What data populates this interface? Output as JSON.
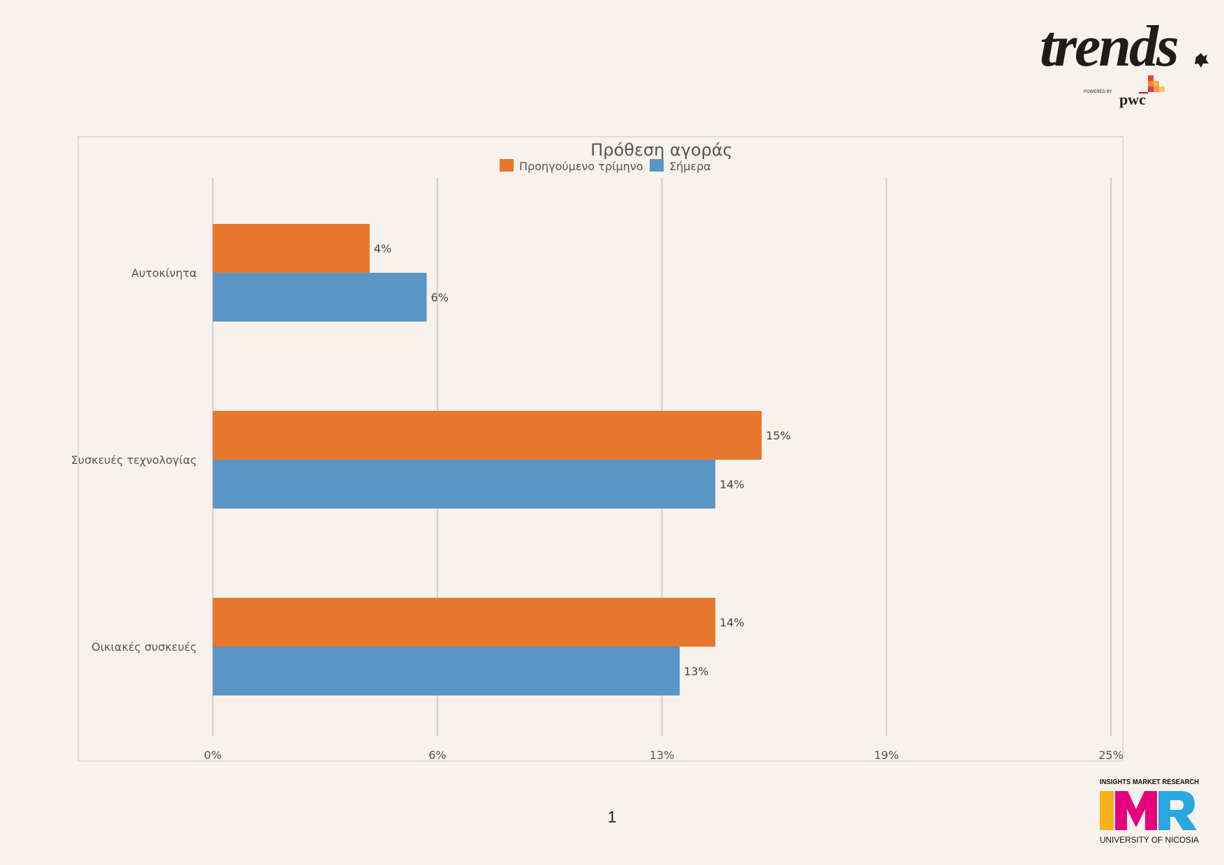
{
  "header": {
    "brand": "trends",
    "powered_by": "POWERED BY",
    "partner": "pwc"
  },
  "footer": {
    "imr_top": "INSIGHTS MARKET RESEARCH",
    "imr_mark": "IMR",
    "imr_bottom": "UNIVERSITY OF NICOSIA",
    "page_number": "1"
  },
  "colors": {
    "background": "#f8f2ec",
    "series_previous": "#e8772e",
    "series_today": "#5b95c5",
    "gridline": "#d0ccc7",
    "imr_yellow": "#f7b21b",
    "imr_magenta": "#e6007e",
    "imr_blue": "#29a8e0"
  },
  "chart_data": {
    "type": "bar",
    "orientation": "horizontal",
    "title": "Πρόθεση αγοράς",
    "categories": [
      "Αυτοκίνητα",
      "Συσκευές τεχνολογίας",
      "Οικιακές συσκευές"
    ],
    "series": [
      {
        "name": "Προηγούμενο τρίμηνο",
        "values": [
          4.4,
          15.4,
          14.1
        ],
        "labels": [
          "4%",
          "15%",
          "14%"
        ],
        "color": "#e8772e"
      },
      {
        "name": "Σήμερα",
        "values": [
          6.0,
          14.1,
          13.1
        ],
        "labels": [
          "6%",
          "14%",
          "13%"
        ],
        "color": "#5b95c5"
      }
    ],
    "x_ticks": [
      0,
      6.3,
      12.6,
      18.9,
      25.2
    ],
    "x_tick_labels": [
      "0%",
      "6%",
      "13%",
      "19%",
      "25%"
    ],
    "xlim": [
      0,
      25.2
    ],
    "legend": "top",
    "grid": true
  }
}
